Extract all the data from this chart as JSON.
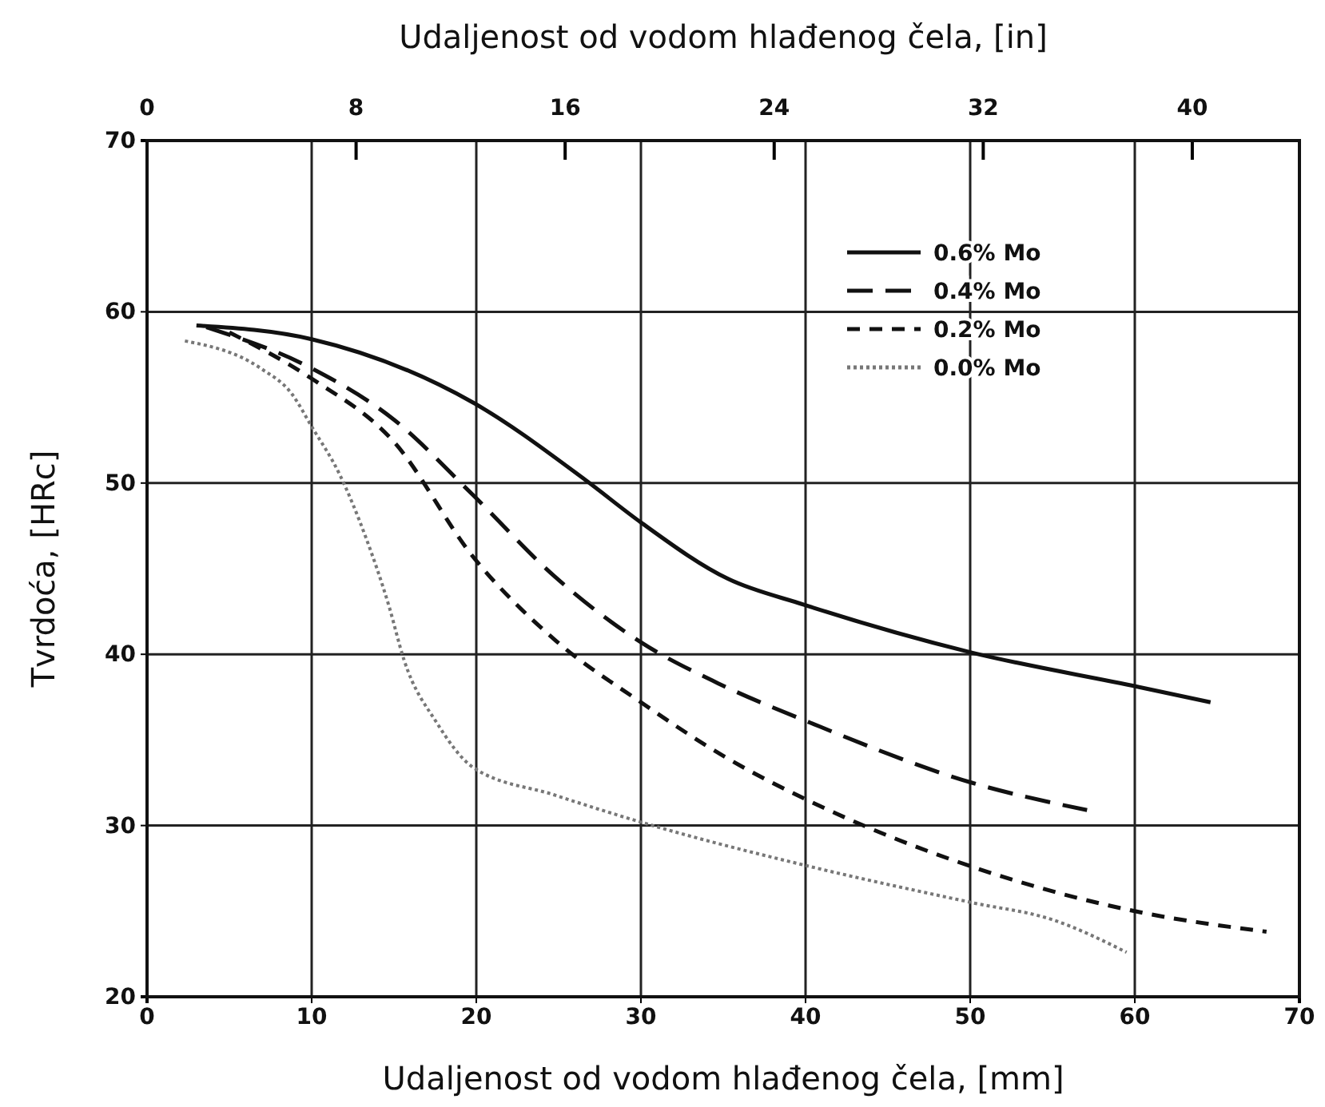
{
  "chart_data": {
    "type": "line",
    "xlabel": "Udaljenost od vodom hlađenog čela, [mm]",
    "x2label": "Udaljenost od vodom hlađenog čela, [in]",
    "ylabel": "Tvrdoća, [HRc]",
    "xlim": [
      0,
      70
    ],
    "xticks": [
      0,
      10,
      20,
      30,
      40,
      50,
      60,
      70
    ],
    "ylim": [
      20,
      70
    ],
    "yticks": [
      20,
      30,
      40,
      50,
      60,
      70
    ],
    "x2lim": [
      0,
      44.1
    ],
    "x2ticks": [
      0,
      8,
      16,
      24,
      32,
      40
    ],
    "grid": true,
    "legend": "top right",
    "marker": "none",
    "series": [
      {
        "name": "0.6% Mo",
        "color": "#111111",
        "line_style": "solid",
        "x": [
          3,
          10,
          19.8,
          26.6,
          30,
          35.3,
          39.9,
          50.1,
          60.2,
          64.6
        ],
        "values": [
          59.2,
          58.4,
          54.7,
          50.2,
          47.7,
          44.4,
          42.9,
          40.1,
          38.1,
          37.2
        ]
      },
      {
        "name": "0.4% Mo",
        "color": "#111111",
        "line_style": "dashed",
        "x": [
          3.6,
          10,
          15,
          19.8,
          24.7,
          30,
          34.7,
          40.3,
          50.1,
          57.1
        ],
        "values": [
          59.1,
          56.7,
          53.7,
          49.3,
          44.6,
          40.7,
          38.3,
          36,
          32.5,
          30.9
        ]
      },
      {
        "name": "0.2% Mo",
        "color": "#111111",
        "line_style": "dashed",
        "x": [
          5,
          10,
          15,
          19.8,
          24.7,
          30,
          35.3,
          40.3,
          50.1,
          60,
          68
        ],
        "values": [
          58.8,
          56.1,
          52.4,
          45.7,
          40.9,
          37.2,
          33.9,
          31.4,
          27.6,
          25,
          23.8
        ]
      },
      {
        "name": "0.0% Mo",
        "color": "#777777",
        "line_style": "dotted",
        "x": [
          2.3,
          6.9,
          8.8,
          10,
          11.7,
          13.3,
          14.7,
          15.6,
          17.6,
          19.8,
          24.7,
          30,
          40.3,
          50.1,
          55,
          59.5
        ],
        "values": [
          58.3,
          56.7,
          55.2,
          53.3,
          50.5,
          46.8,
          42.8,
          39.7,
          36,
          33.4,
          31.8,
          30.2,
          27.6,
          25.5,
          24.5,
          22.6
        ]
      }
    ]
  }
}
